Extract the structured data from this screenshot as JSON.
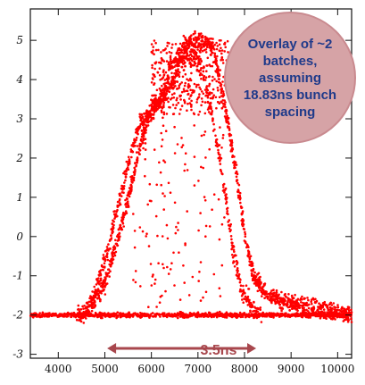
{
  "chart_data": {
    "type": "scatter",
    "title": "",
    "xlabel": "",
    "ylabel": "",
    "xlim": [
      3400,
      10300
    ],
    "ylim": [
      -3.1,
      5.8
    ],
    "x_ticks": [
      4000,
      5000,
      6000,
      7000,
      8000,
      9000,
      10000
    ],
    "y_ticks": [
      -3,
      -2,
      -1,
      0,
      1,
      2,
      3,
      4,
      5
    ],
    "x_tick_labels": [
      "4000",
      "5000",
      "6000",
      "7000",
      "8000",
      "9000",
      "10000"
    ],
    "y_tick_labels": [
      "-3",
      "-2",
      "-1",
      "0",
      "1",
      "2",
      "3",
      "4",
      "5"
    ],
    "grid": false,
    "marker_color": "#ff0000",
    "series": [
      {
        "description_points": [
          [
            3400,
            -2.0
          ],
          [
            4500,
            -2.0
          ],
          [
            4700,
            -1.8
          ],
          [
            5000,
            -1.2
          ],
          [
            5300,
            0.0
          ],
          [
            5500,
            1.0
          ],
          [
            5800,
            2.5
          ],
          [
            6000,
            3.3
          ],
          [
            6300,
            3.6
          ],
          [
            6500,
            4.0
          ],
          [
            6700,
            4.9
          ],
          [
            7000,
            5.0
          ],
          [
            7300,
            4.9
          ],
          [
            7500,
            3.8
          ],
          [
            7700,
            2.5
          ],
          [
            7900,
            1.0
          ],
          [
            8000,
            0.0
          ],
          [
            8200,
            -1.0
          ],
          [
            8500,
            -1.5
          ],
          [
            9000,
            -1.7
          ],
          [
            9500,
            -1.8
          ],
          [
            10300,
            -2.0
          ]
        ]
      }
    ],
    "annotations": [
      {
        "text": "Overlay of ~2\nbatches,\nassuming\n18.83ns bunch\nspacing",
        "color": "#1f3a8a",
        "background": "#d6a3a6"
      },
      {
        "text": "3.5ns",
        "color": "#a8474d",
        "arrow_x": [
          5050,
          8250
        ],
        "arrow_y": -2.85
      }
    ]
  }
}
